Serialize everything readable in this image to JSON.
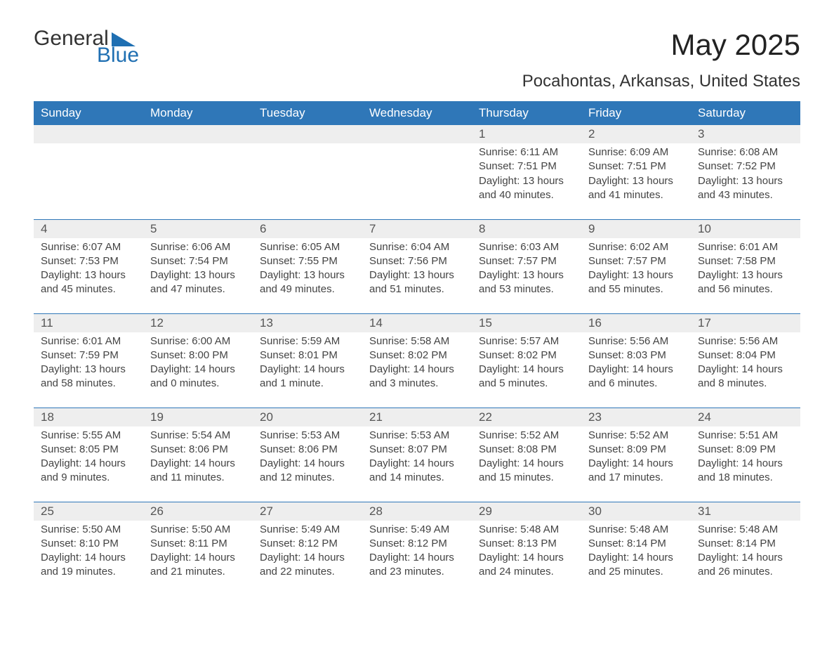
{
  "logo": {
    "general": "General",
    "blue": "Blue",
    "tri_color": "#1f6fb2"
  },
  "title": "May 2025",
  "subtitle": "Pocahontas, Arkansas, United States",
  "colors": {
    "header_bg": "#2f77b8",
    "header_text": "#ffffff",
    "daynum_bg": "#eeeeee",
    "row_border": "#2f77b8",
    "body_text": "#444444",
    "title_text": "#222222"
  },
  "fonts": {
    "title_size_pt": 32,
    "subtitle_size_pt": 18,
    "header_size_pt": 13,
    "daynum_size_pt": 13,
    "body_size_pt": 11
  },
  "week_headers": [
    "Sunday",
    "Monday",
    "Tuesday",
    "Wednesday",
    "Thursday",
    "Friday",
    "Saturday"
  ],
  "weeks": [
    [
      null,
      null,
      null,
      null,
      {
        "n": "1",
        "sunrise": "6:11 AM",
        "sunset": "7:51 PM",
        "daylight": "13 hours and 40 minutes."
      },
      {
        "n": "2",
        "sunrise": "6:09 AM",
        "sunset": "7:51 PM",
        "daylight": "13 hours and 41 minutes."
      },
      {
        "n": "3",
        "sunrise": "6:08 AM",
        "sunset": "7:52 PM",
        "daylight": "13 hours and 43 minutes."
      }
    ],
    [
      {
        "n": "4",
        "sunrise": "6:07 AM",
        "sunset": "7:53 PM",
        "daylight": "13 hours and 45 minutes."
      },
      {
        "n": "5",
        "sunrise": "6:06 AM",
        "sunset": "7:54 PM",
        "daylight": "13 hours and 47 minutes."
      },
      {
        "n": "6",
        "sunrise": "6:05 AM",
        "sunset": "7:55 PM",
        "daylight": "13 hours and 49 minutes."
      },
      {
        "n": "7",
        "sunrise": "6:04 AM",
        "sunset": "7:56 PM",
        "daylight": "13 hours and 51 minutes."
      },
      {
        "n": "8",
        "sunrise": "6:03 AM",
        "sunset": "7:57 PM",
        "daylight": "13 hours and 53 minutes."
      },
      {
        "n": "9",
        "sunrise": "6:02 AM",
        "sunset": "7:57 PM",
        "daylight": "13 hours and 55 minutes."
      },
      {
        "n": "10",
        "sunrise": "6:01 AM",
        "sunset": "7:58 PM",
        "daylight": "13 hours and 56 minutes."
      }
    ],
    [
      {
        "n": "11",
        "sunrise": "6:01 AM",
        "sunset": "7:59 PM",
        "daylight": "13 hours and 58 minutes."
      },
      {
        "n": "12",
        "sunrise": "6:00 AM",
        "sunset": "8:00 PM",
        "daylight": "14 hours and 0 minutes."
      },
      {
        "n": "13",
        "sunrise": "5:59 AM",
        "sunset": "8:01 PM",
        "daylight": "14 hours and 1 minute."
      },
      {
        "n": "14",
        "sunrise": "5:58 AM",
        "sunset": "8:02 PM",
        "daylight": "14 hours and 3 minutes."
      },
      {
        "n": "15",
        "sunrise": "5:57 AM",
        "sunset": "8:02 PM",
        "daylight": "14 hours and 5 minutes."
      },
      {
        "n": "16",
        "sunrise": "5:56 AM",
        "sunset": "8:03 PM",
        "daylight": "14 hours and 6 minutes."
      },
      {
        "n": "17",
        "sunrise": "5:56 AM",
        "sunset": "8:04 PM",
        "daylight": "14 hours and 8 minutes."
      }
    ],
    [
      {
        "n": "18",
        "sunrise": "5:55 AM",
        "sunset": "8:05 PM",
        "daylight": "14 hours and 9 minutes."
      },
      {
        "n": "19",
        "sunrise": "5:54 AM",
        "sunset": "8:06 PM",
        "daylight": "14 hours and 11 minutes."
      },
      {
        "n": "20",
        "sunrise": "5:53 AM",
        "sunset": "8:06 PM",
        "daylight": "14 hours and 12 minutes."
      },
      {
        "n": "21",
        "sunrise": "5:53 AM",
        "sunset": "8:07 PM",
        "daylight": "14 hours and 14 minutes."
      },
      {
        "n": "22",
        "sunrise": "5:52 AM",
        "sunset": "8:08 PM",
        "daylight": "14 hours and 15 minutes."
      },
      {
        "n": "23",
        "sunrise": "5:52 AM",
        "sunset": "8:09 PM",
        "daylight": "14 hours and 17 minutes."
      },
      {
        "n": "24",
        "sunrise": "5:51 AM",
        "sunset": "8:09 PM",
        "daylight": "14 hours and 18 minutes."
      }
    ],
    [
      {
        "n": "25",
        "sunrise": "5:50 AM",
        "sunset": "8:10 PM",
        "daylight": "14 hours and 19 minutes."
      },
      {
        "n": "26",
        "sunrise": "5:50 AM",
        "sunset": "8:11 PM",
        "daylight": "14 hours and 21 minutes."
      },
      {
        "n": "27",
        "sunrise": "5:49 AM",
        "sunset": "8:12 PM",
        "daylight": "14 hours and 22 minutes."
      },
      {
        "n": "28",
        "sunrise": "5:49 AM",
        "sunset": "8:12 PM",
        "daylight": "14 hours and 23 minutes."
      },
      {
        "n": "29",
        "sunrise": "5:48 AM",
        "sunset": "8:13 PM",
        "daylight": "14 hours and 24 minutes."
      },
      {
        "n": "30",
        "sunrise": "5:48 AM",
        "sunset": "8:14 PM",
        "daylight": "14 hours and 25 minutes."
      },
      {
        "n": "31",
        "sunrise": "5:48 AM",
        "sunset": "8:14 PM",
        "daylight": "14 hours and 26 minutes."
      }
    ]
  ],
  "labels": {
    "sunrise": "Sunrise:",
    "sunset": "Sunset:",
    "daylight": "Daylight:"
  }
}
